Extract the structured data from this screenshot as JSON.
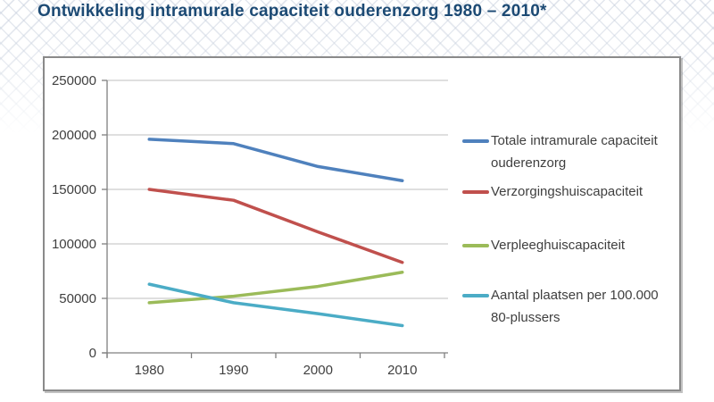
{
  "page": {
    "title": "Ontwikkeling intramurale capaciteit ouderenzorg 1980 – 2010*"
  },
  "chart_data": {
    "type": "line",
    "title": "Ontwikkeling intramurale capaciteit ouderenzorg 1980 – 2010*",
    "categories": [
      "1980",
      "1990",
      "2000",
      "2010"
    ],
    "series": [
      {
        "name": "Totale intramurale capaciteit ouderenzorg",
        "color": "#4F81BD",
        "values": [
          196000,
          192000,
          171000,
          158000
        ]
      },
      {
        "name": "Verzorgingshuiscapaciteit",
        "color": "#C0504D",
        "values": [
          150000,
          140000,
          111000,
          83000
        ]
      },
      {
        "name": "Verpleeghuiscapaciteit",
        "color": "#9BBB59",
        "values": [
          46000,
          52000,
          61000,
          74000
        ]
      },
      {
        "name": "Aantal plaatsen per 100.000 80-plussers",
        "color": "#4BACC6",
        "values": [
          63000,
          46000,
          36000,
          25000
        ]
      }
    ],
    "xlabel": "",
    "ylabel": "",
    "ylim": [
      0,
      250000
    ],
    "ytick_step": 50000,
    "ytick_labels": [
      "0",
      "50000",
      "100000",
      "150000",
      "200000",
      "250000"
    ],
    "grid": true,
    "legend_position": "right",
    "axis_color": "#808080",
    "grid_color": "#BFBFBF",
    "tick_label_color": "#404040"
  }
}
